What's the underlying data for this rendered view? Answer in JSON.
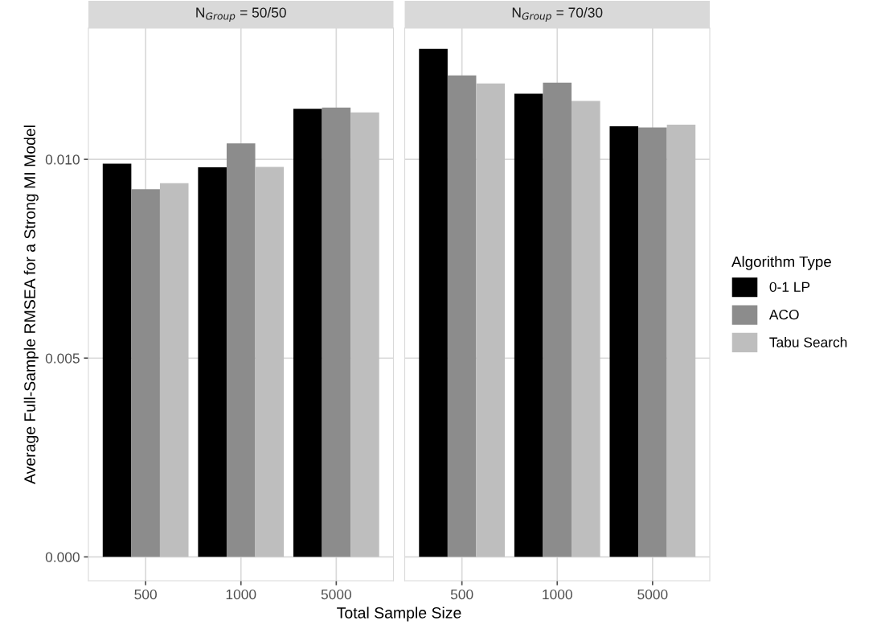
{
  "chart_data": [
    {
      "type": "bar",
      "title": "N$_{Group}$ = 50/50",
      "xlabel": "Total Sample Size",
      "ylabel": "Average Full-Sample RMSEA for a Strong MI Model",
      "categories": [
        "500",
        "1000",
        "5000"
      ],
      "series": [
        {
          "color": "#000000",
          "values": [
            0.00989,
            0.0098,
            0.01127
          ]
        },
        {
          "color": "#8c8c8c",
          "values": [
            0.00925,
            0.0104,
            0.0113
          ]
        },
        {
          "color": "#bebebe",
          "values": [
            0.0094,
            0.00981,
            0.01118
          ]
        }
      ],
      "ylim": [
        -0.0006,
        0.0133
      ],
      "yticks": [
        {
          "value": 0,
          "label": "0.000"
        },
        {
          "value": 0.005,
          "label": "0.005"
        },
        {
          "value": 0.01,
          "label": "0.010"
        }
      ],
      "grid": true
    },
    {
      "type": "bar",
      "title": "N$_{Group}$ = 70/30",
      "legend_title": "Algorithm Type",
      "categories": [
        "500",
        "1000",
        "5000"
      ],
      "series": [
        {
          "name": "0-1 LP",
          "color": "#000000",
          "values": [
            0.01278,
            0.01165,
            0.01083
          ]
        },
        {
          "name": "ACO",
          "color": "#8c8c8c",
          "values": [
            0.01211,
            0.01193,
            0.0108
          ]
        },
        {
          "name": "Tabu Search",
          "color": "#bebebe",
          "values": [
            0.01191,
            0.01147,
            0.01087
          ]
        }
      ],
      "ylim": [
        -0.0006,
        0.0133
      ],
      "yticks": [
        {
          "value": 0,
          "label": null
        },
        {
          "value": 0.005,
          "label": null
        },
        {
          "value": 0.01,
          "label": null
        }
      ],
      "grid": true,
      "legend": "right",
      "tick_labels": "x"
    }
  ]
}
